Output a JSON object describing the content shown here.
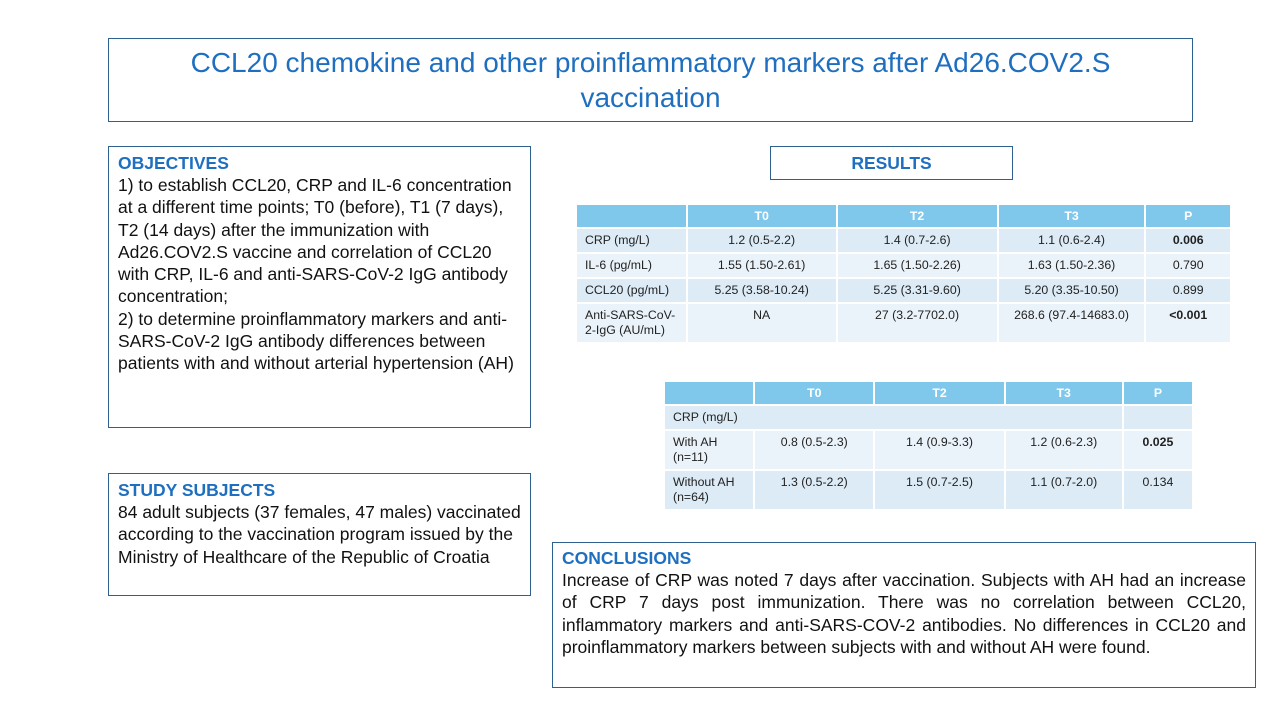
{
  "title": "CCL20 chemokine and other proinflammatory markers after Ad26.COV2.S vaccination",
  "objectives": {
    "heading": "OBJECTIVES",
    "text1": "1) to establish CCL20, CRP and IL-6 concentration at a different time points; T0 (before), T1 (7 days), T2 (14 days) after the immunization with Ad26.COV2.S vaccine and correlation of CCL20 with CRP, IL-6 and anti-SARS-CoV-2 IgG antibody concentration;",
    "text2": "2) to determine proinflammatory markers and anti-SARS-CoV-2 IgG antibody differences between patients with and without arterial hypertension (AH)"
  },
  "study_subjects": {
    "heading": "STUDY SUBJECTS",
    "text": "84 adult subjects (37 females, 47 males) vaccinated  according to the vaccination program issued by the Ministry of Healthcare of the Republic of Croatia"
  },
  "results": {
    "heading": "RESULTS"
  },
  "table1": {
    "headers": [
      "",
      "T0",
      "T2",
      "T3",
      "P"
    ],
    "rows": [
      {
        "label": "CRP  (mg/L)",
        "t0": "1.2 (0.5-2.2)",
        "t2": "1.4 (0.7-2.6)",
        "t3": "1.1 (0.6-2.4)",
        "p": "0.006"
      },
      {
        "label": "IL-6  (pg/mL)",
        "t0": "1.55 (1.50-2.61)",
        "t2": "1.65 (1.50-2.26)",
        "t3": "1.63 (1.50-2.36)",
        "p": "0.790"
      },
      {
        "label": "CCL20  (pg/mL)",
        "t0": "5.25 (3.58-10.24)",
        "t2": "5.25 (3.31-9.60)",
        "t3": "5.20 (3.35-10.50)",
        "p": "0.899"
      },
      {
        "label": "Anti-SARS-CoV-2-IgG (AU/mL)",
        "t0": "NA",
        "t2": "27 (3.2-7702.0)",
        "t3": "268.6 (97.4-14683.0)",
        "p": "<0.001"
      }
    ]
  },
  "table2": {
    "headers": [
      "",
      "T0",
      "T2",
      "T3",
      "P"
    ],
    "section_label": "CRP  (mg/L)",
    "rows": [
      {
        "label": "With AH (n=11)",
        "t0": "0.8 (0.5-2.3)",
        "t2": "1.4 (0.9-3.3)",
        "t3": "1.2 (0.6-2.3)",
        "p": "0.025"
      },
      {
        "label": "Without AH (n=64)",
        "t0": "1.3 (0.5-2.2)",
        "t2": "1.5 (0.7-2.5)",
        "t3": "1.1 (0.7-2.0)",
        "p": "0.134"
      }
    ]
  },
  "conclusions": {
    "heading": "CONCLUSIONS",
    "text": "Increase of CRP was noted 7 days after vaccination. Subjects with AH had an increase of CRP 7 days post immunization. There was no correlation between CCL20, inflammatory markers and anti-SARS-COV-2 antibodies. No differences in CCL20 and proinflammatory markers between subjects with and without AH were found."
  }
}
